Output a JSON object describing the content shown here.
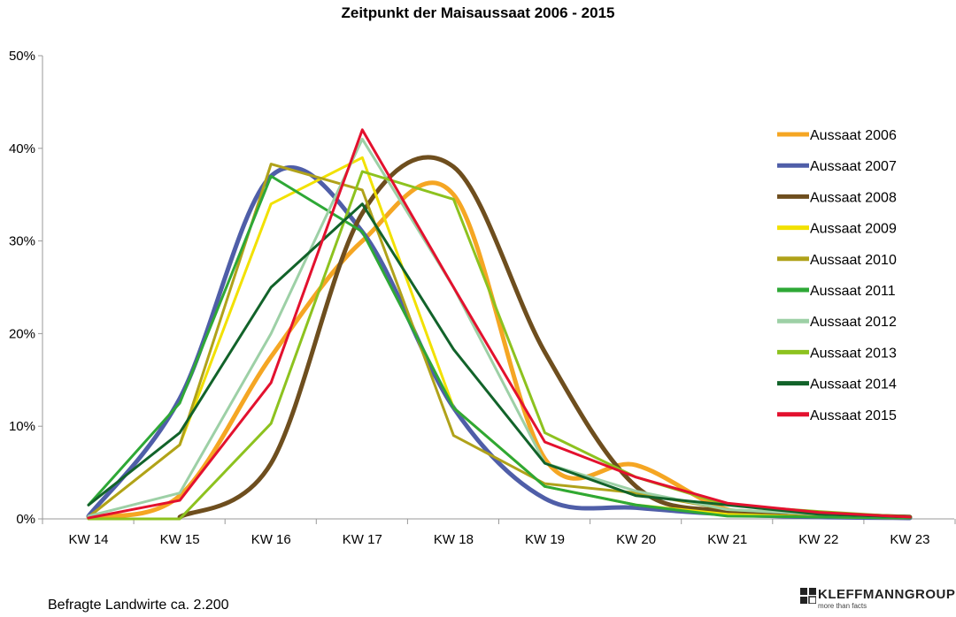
{
  "chart_data": {
    "type": "line",
    "title": "Zeitpunkt der Maisaussaat 2006 - 2015",
    "xlabel": "",
    "ylabel": "",
    "categories": [
      "KW 14",
      "KW 15",
      "KW 16",
      "KW 17",
      "KW 18",
      "KW 19",
      "KW 20",
      "KW 21",
      "KW 22",
      "KW 23"
    ],
    "ylim": [
      0,
      50
    ],
    "yticks": [
      "0%",
      "10%",
      "20%",
      "30%",
      "40%",
      "50%"
    ],
    "legend_position": "right",
    "series": [
      {
        "name": "Aussaat 2006",
        "color": "#F5A623",
        "smooth": true,
        "width": 5,
        "values": [
          0.2,
          2.5,
          17.5,
          30,
          35,
          6.5,
          5.8,
          1.0,
          0.5,
          0.2
        ]
      },
      {
        "name": "Aussaat 2007",
        "color": "#4F5EA8",
        "smooth": true,
        "width": 5,
        "values": [
          0.3,
          13,
          37,
          31,
          12,
          2.2,
          1.2,
          0.5,
          0.2,
          0.1
        ]
      },
      {
        "name": "Aussaat 2008",
        "color": "#6E4E1E",
        "smooth": true,
        "width": 5,
        "values": [
          null,
          0.2,
          6,
          33,
          38,
          18,
          3.5,
          0.8,
          0.5,
          0.2
        ]
      },
      {
        "name": "Aussaat 2009",
        "color": "#F2E100",
        "smooth": false,
        "width": 3,
        "values": [
          0.2,
          8,
          34,
          39,
          12,
          3.5,
          1.5,
          0.5,
          0.2,
          0.1
        ]
      },
      {
        "name": "Aussaat 2010",
        "color": "#B0A21A",
        "smooth": false,
        "width": 3,
        "values": [
          0.2,
          8,
          38.3,
          35.5,
          9,
          3.8,
          2.8,
          1.0,
          0.5,
          0.2
        ]
      },
      {
        "name": "Aussaat 2011",
        "color": "#2EA836",
        "smooth": false,
        "width": 3,
        "values": [
          1.5,
          12.5,
          37,
          31,
          12,
          3.5,
          1.5,
          0.3,
          0.2,
          0.1
        ]
      },
      {
        "name": "Aussaat 2012",
        "color": "#9DD0A6",
        "smooth": false,
        "width": 3,
        "values": [
          0.3,
          2.8,
          20,
          41,
          25,
          6,
          3,
          1.0,
          0.5,
          0.2
        ]
      },
      {
        "name": "Aussaat 2013",
        "color": "#8DC21F",
        "smooth": false,
        "width": 3,
        "values": [
          0,
          0,
          10.3,
          37.5,
          34.5,
          9.3,
          4.5,
          1.5,
          0.8,
          0.2
        ]
      },
      {
        "name": "Aussaat 2014",
        "color": "#12632A",
        "smooth": false,
        "width": 3,
        "values": [
          1.5,
          9.3,
          25,
          34,
          18.3,
          6,
          2.5,
          1.5,
          0.5,
          0.2
        ]
      },
      {
        "name": "Aussaat 2015",
        "color": "#E3112E",
        "smooth": false,
        "width": 3,
        "values": [
          0.1,
          2,
          14.7,
          42,
          25,
          8.3,
          4.5,
          1.7,
          0.7,
          0.2
        ]
      }
    ]
  },
  "footer": "Befragte Landwirte ca. 2.200",
  "logo": {
    "brand": "KLEFFMANNGROUP",
    "tagline": "more than facts"
  }
}
